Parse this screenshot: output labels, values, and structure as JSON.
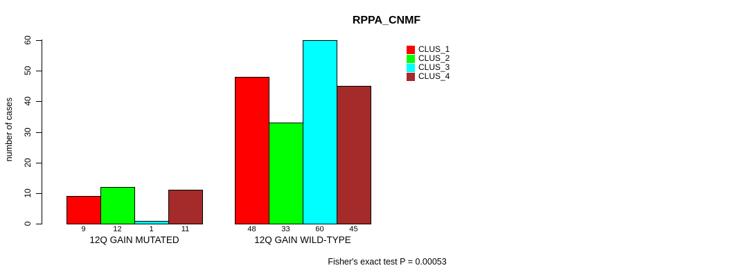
{
  "chart_data": {
    "type": "bar",
    "title": "RPPA_CNMF",
    "ylabel": "number of cases",
    "xlabel": "",
    "ylim": [
      0,
      60
    ],
    "yticks": [
      0,
      10,
      20,
      30,
      40,
      50,
      60
    ],
    "grid": false,
    "legend_position": "right",
    "categories": [
      "12Q GAIN MUTATED",
      "12Q GAIN WILD-TYPE"
    ],
    "series": [
      {
        "name": "CLUS_1",
        "color": "#FF0000",
        "values": [
          9,
          48
        ]
      },
      {
        "name": "CLUS_2",
        "color": "#00FF00",
        "values": [
          12,
          33
        ]
      },
      {
        "name": "CLUS_3",
        "color": "#00FFFF",
        "values": [
          1,
          60
        ]
      },
      {
        "name": "CLUS_4",
        "color": "#A52A2A",
        "values": [
          11,
          45
        ]
      }
    ],
    "bar_labels": [
      [
        "9",
        "12",
        "1",
        "11"
      ],
      [
        "48",
        "33",
        "60",
        "45"
      ]
    ],
    "annotation": "Fisher's exact test P = 0.00053",
    "axis_color": "#000000",
    "bar_border_color": "#000000"
  }
}
